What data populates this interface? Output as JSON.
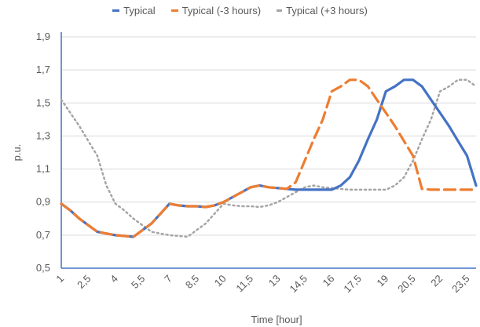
{
  "chart_data": {
    "type": "line",
    "ylabel": "p.u.",
    "xlabel": "Time [hour]",
    "ylim": [
      0.5,
      1.9
    ],
    "yticks": [
      "0,5",
      "0,7",
      "0,9",
      "1,1",
      "1,3",
      "1,5",
      "1,7",
      "1,9"
    ],
    "x": [
      1,
      2.5,
      4,
      5.5,
      7,
      8.5,
      10,
      11.5,
      13,
      14.5,
      16,
      17.5,
      19,
      20.5,
      22,
      23.5
    ],
    "xtick_labels": [
      "1",
      "2,5",
      "4",
      "5,5",
      "7",
      "8,5",
      "10",
      "11,5",
      "13",
      "14,5",
      "16",
      "17,5",
      "19",
      "20,5",
      "22",
      "23,5"
    ],
    "grid": "horizontal",
    "legend_position": "top",
    "series": [
      {
        "name": "Typical",
        "color": "#4472C4",
        "style": "solid",
        "x": [
          1,
          1.5,
          2,
          2.5,
          3,
          3.5,
          4,
          4.5,
          5,
          5.5,
          6,
          6.5,
          7,
          7.5,
          8,
          8.5,
          9,
          9.5,
          10,
          10.5,
          11,
          11.5,
          12,
          12.5,
          13,
          13.5,
          14,
          14.5,
          15,
          15.5,
          16,
          16.5,
          17,
          17.5,
          18,
          18.5,
          19,
          19.5,
          20,
          20.5,
          21,
          21.5,
          22,
          22.5,
          23,
          23.5,
          24
        ],
        "y": [
          0.89,
          0.85,
          0.8,
          0.76,
          0.72,
          0.71,
          0.7,
          0.695,
          0.69,
          0.73,
          0.77,
          0.83,
          0.89,
          0.88,
          0.875,
          0.875,
          0.87,
          0.88,
          0.9,
          0.93,
          0.96,
          0.99,
          1.0,
          0.99,
          0.985,
          0.98,
          0.975,
          0.975,
          0.975,
          0.975,
          0.975,
          1.0,
          1.05,
          1.15,
          1.28,
          1.4,
          1.57,
          1.6,
          1.64,
          1.64,
          1.6,
          1.52,
          1.44,
          1.36,
          1.27,
          1.18,
          1.0
        ]
      },
      {
        "name": "Typical (-3 hours)",
        "color": "#ED7D31",
        "style": "dashed",
        "x": [
          1,
          1.5,
          2,
          2.5,
          3,
          3.5,
          4,
          4.5,
          5,
          5.5,
          6,
          6.5,
          7,
          7.5,
          8,
          8.5,
          9,
          9.5,
          10,
          10.5,
          11,
          11.5,
          12,
          12.5,
          13,
          13.5,
          14,
          14.5,
          15,
          15.5,
          16,
          16.5,
          17,
          17.5,
          18,
          18.5,
          19,
          19.5,
          20,
          20.5,
          21,
          21.5,
          22,
          22.5,
          23,
          23.5,
          24
        ],
        "y": [
          0.89,
          0.85,
          0.8,
          0.76,
          0.72,
          0.71,
          0.7,
          0.695,
          0.69,
          0.73,
          0.77,
          0.83,
          0.89,
          0.88,
          0.875,
          0.875,
          0.87,
          0.88,
          0.9,
          0.93,
          0.96,
          0.99,
          1.0,
          0.99,
          0.985,
          0.98,
          1.02,
          1.15,
          1.28,
          1.4,
          1.57,
          1.6,
          1.64,
          1.64,
          1.6,
          1.52,
          1.44,
          1.36,
          1.27,
          1.18,
          0.98,
          0.975,
          0.975,
          0.975,
          0.975,
          0.975,
          0.975
        ]
      },
      {
        "name": "Typical (+3 hours)",
        "color": "#A5A5A5",
        "style": "dotted",
        "x": [
          1,
          1.5,
          2,
          2.5,
          3,
          3.5,
          4,
          4.5,
          5,
          5.5,
          6,
          6.5,
          7,
          7.5,
          8,
          8.5,
          9,
          9.5,
          10,
          10.5,
          11,
          11.5,
          12,
          12.5,
          13,
          13.5,
          14,
          14.5,
          15,
          15.5,
          16,
          16.5,
          17,
          17.5,
          18,
          18.5,
          19,
          19.5,
          20,
          20.5,
          21,
          21.5,
          22,
          22.5,
          23,
          23.5,
          24
        ],
        "y": [
          1.52,
          1.44,
          1.36,
          1.27,
          1.18,
          1.0,
          0.89,
          0.85,
          0.8,
          0.76,
          0.72,
          0.71,
          0.7,
          0.695,
          0.69,
          0.73,
          0.77,
          0.83,
          0.89,
          0.88,
          0.875,
          0.875,
          0.87,
          0.88,
          0.9,
          0.93,
          0.96,
          0.99,
          1.0,
          0.99,
          0.985,
          0.98,
          0.975,
          0.975,
          0.975,
          0.975,
          0.975,
          1.0,
          1.05,
          1.15,
          1.28,
          1.4,
          1.57,
          1.6,
          1.64,
          1.64,
          1.6
        ]
      }
    ]
  }
}
